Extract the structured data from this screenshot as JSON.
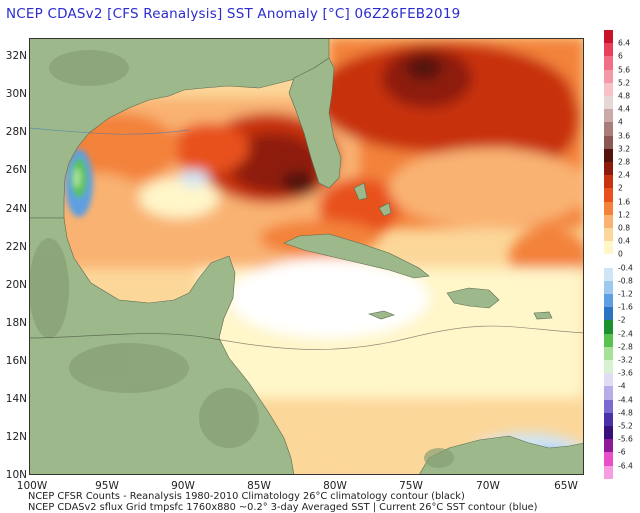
{
  "title": "NCEP CDASv2 [CFS Reanalysis] SST Anomaly [°C] 06Z26FEB2019",
  "map": {
    "lat_labels": [
      "32N",
      "30N",
      "28N",
      "26N",
      "24N",
      "22N",
      "20N",
      "18N",
      "16N",
      "14N",
      "12N",
      "10N"
    ],
    "lon_labels": [
      "100W",
      "95W",
      "90W",
      "85W",
      "80W",
      "75W",
      "70W",
      "65W"
    ],
    "extent": {
      "lon_min": -100,
      "lon_max": -64,
      "lat_min": 10,
      "lat_max": 33
    }
  },
  "legend": {
    "labels": [
      "6.4",
      "6",
      "5.6",
      "5.2",
      "4.8",
      "4.4",
      "4",
      "3.6",
      "3.2",
      "2.8",
      "2.4",
      "2",
      "1.6",
      "1.2",
      "0.8",
      "0.4",
      "0",
      "-0.4",
      "-0.8",
      "-1.2",
      "-1.6",
      "-2",
      "-2.4",
      "-2.8",
      "-3.2",
      "-3.6",
      "-4",
      "-4.4",
      "-4.8",
      "-5.2",
      "-5.6",
      "-6",
      "-6.4"
    ],
    "colors": [
      "#c8142a",
      "#e8405a",
      "#f06f85",
      "#f49aa6",
      "#f7c2c8",
      "#e6d7d6",
      "#c9aaa6",
      "#a97d78",
      "#8c5853",
      "#53120b",
      "#8e1a0c",
      "#c7320f",
      "#e8511d",
      "#f3823b",
      "#f9b272",
      "#fcd79a",
      "#fff6c9",
      "#ffffff",
      "#cfe5f6",
      "#9fc8ee",
      "#5d9fe2",
      "#2a74c4",
      "#1c8f2e",
      "#58c150",
      "#a6e19a",
      "#d8f1d0",
      "#e0dcf4",
      "#b6aee6",
      "#7c6ad0",
      "#4b31a8",
      "#38107a",
      "#8d1a96",
      "#e84fc8",
      "#f69ddf"
    ]
  },
  "footer": {
    "line1": "NCEP CFSR Counts - Reanalysis 1980-2010 Climatology    26°C climatology contour (black)",
    "line2": "NCEP CDASv2 sflux Grid tmpsfc 1760x880 ~0.2°      3-day Averaged SST | Current 26°C SST contour (blue)"
  },
  "colors": {
    "land": "#9db88a",
    "ocean_neutral": "#fff6c9",
    "title": "#2b2bd0"
  }
}
